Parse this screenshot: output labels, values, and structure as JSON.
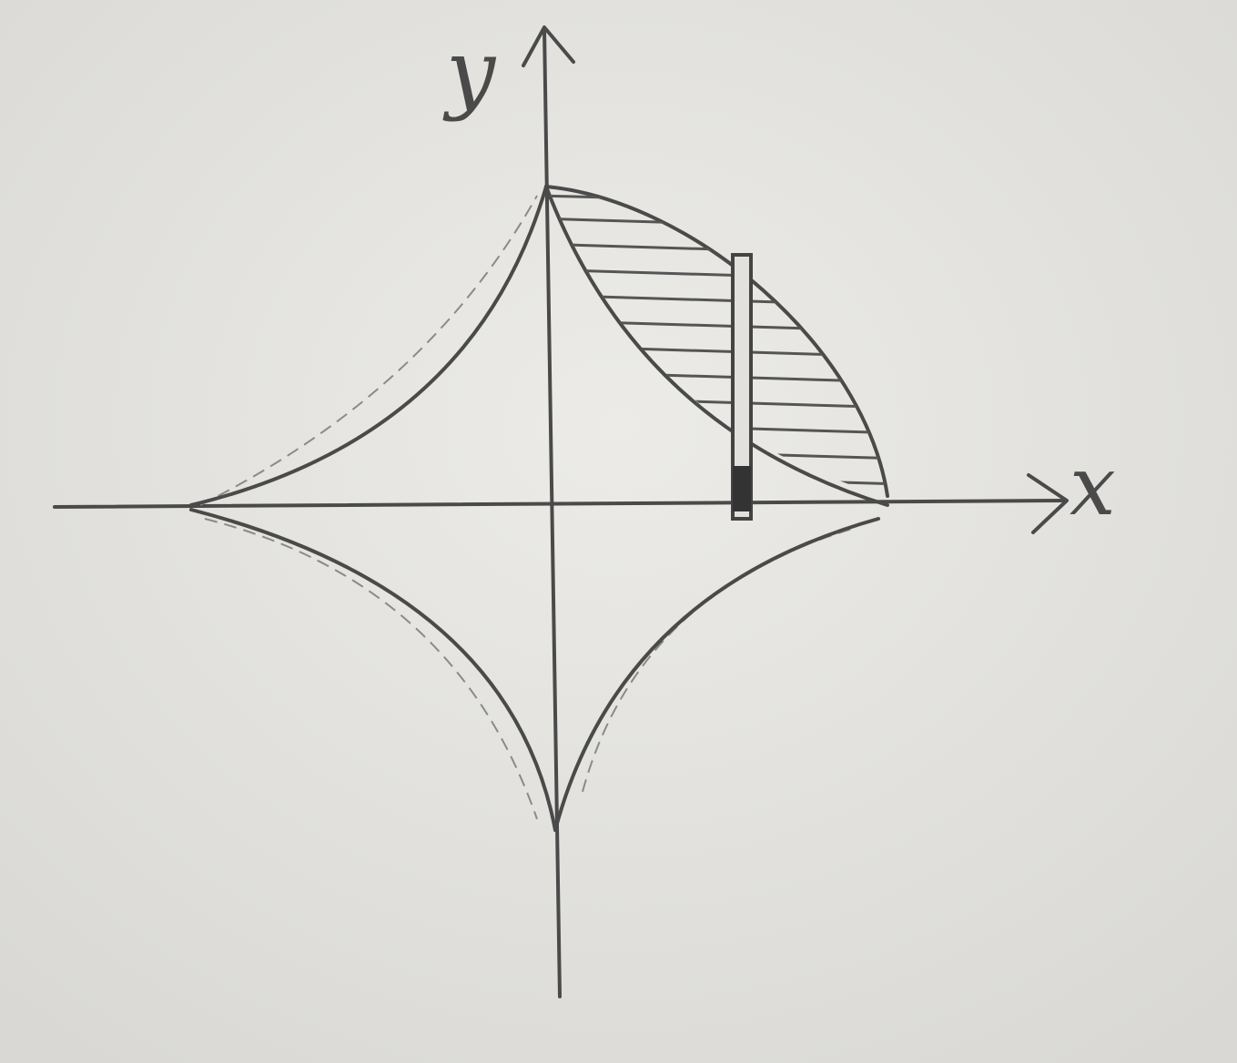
{
  "axis_labels": {
    "x": "x",
    "y": "y"
  }
}
